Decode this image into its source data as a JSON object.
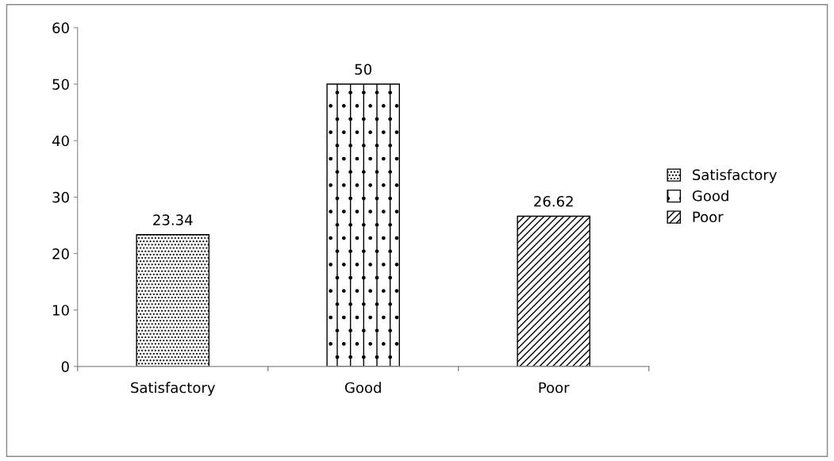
{
  "chart_data": {
    "type": "bar",
    "categories": [
      "Satisfactory",
      "Good",
      "Poor"
    ],
    "series": [
      {
        "name": "Satisfactory",
        "color": "#000000",
        "values": [
          23.34,
          null,
          null
        ]
      },
      {
        "name": "Good",
        "color": "#000000",
        "values": [
          null,
          50,
          null
        ]
      },
      {
        "name": "Poor",
        "color": "#000000",
        "values": [
          null,
          null,
          26.62
        ]
      }
    ],
    "ylim": [
      0,
      60
    ],
    "yticks": [
      0,
      10,
      20,
      30,
      40,
      50,
      60
    ],
    "grid": false,
    "legend": "right",
    "data_labels": true
  }
}
